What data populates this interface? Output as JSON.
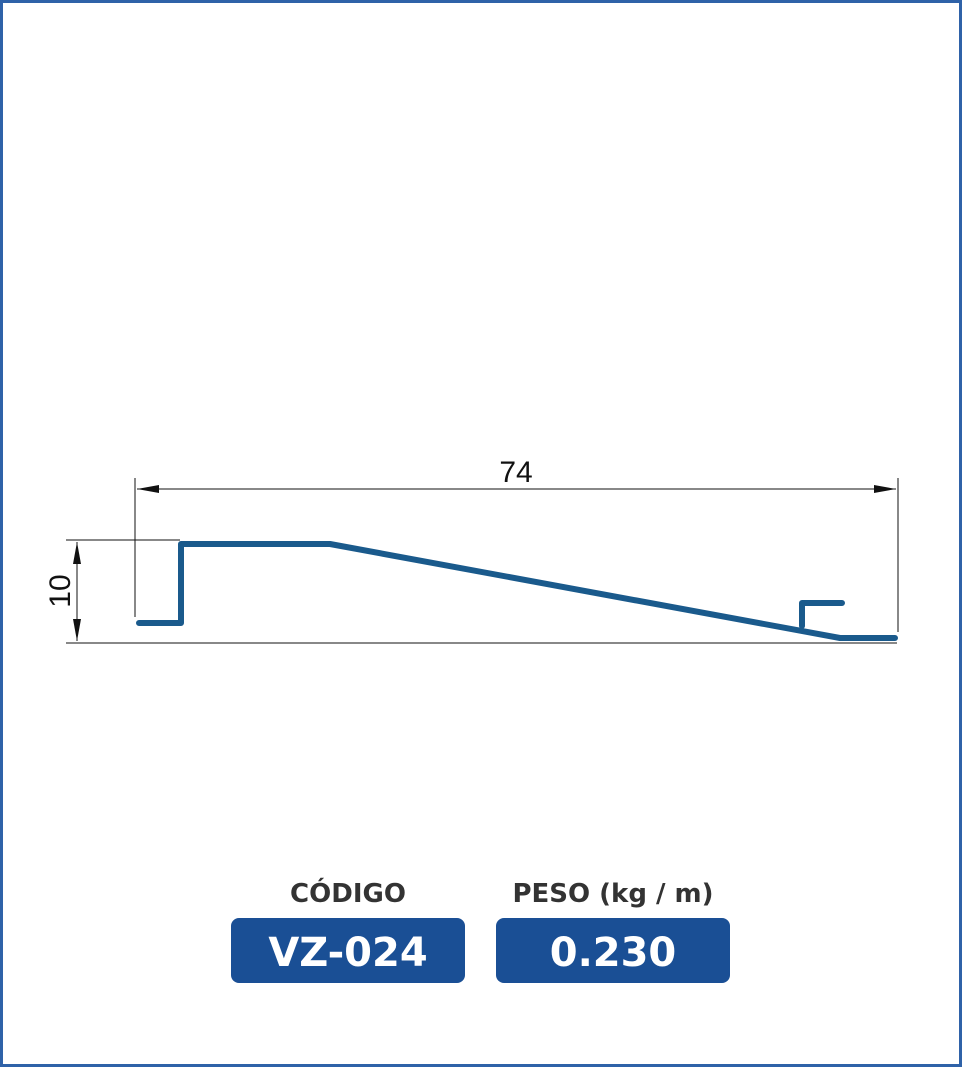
{
  "drawing": {
    "width_dimension": "74",
    "height_dimension": "10"
  },
  "specs": [
    {
      "label": "CÓDIGO",
      "value": "VZ-024"
    },
    {
      "label": "PESO (kg / m)",
      "value": "0.230"
    }
  ]
}
